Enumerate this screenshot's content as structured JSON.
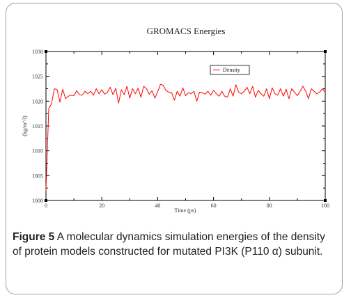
{
  "figure": {
    "caption_label": "Figure 5",
    "caption_text": " A molecular dynamics simulation energies of the density of protein models constructed for mutated PI3K (P110 α) subunit."
  },
  "colors": {
    "line": "#ff0000",
    "axis": "#000000",
    "border": "#9aa0a6"
  },
  "chart_data": {
    "type": "line",
    "title": "GROMACS Energies",
    "xlabel": "Time (ps)",
    "ylabel": "(kg/m^3)",
    "xlim": [
      0,
      100
    ],
    "ylim": [
      1000,
      1030
    ],
    "xticks": [
      "0",
      "20",
      "40",
      "60",
      "80",
      "100"
    ],
    "yticks": [
      "1000",
      "1005",
      "1010",
      "1015",
      "1020",
      "1025",
      "1030"
    ],
    "legend_position": "top-right",
    "grid": false,
    "series": [
      {
        "name": "Density",
        "x": [
          0,
          1,
          2,
          3,
          4,
          5,
          6,
          7,
          8,
          9,
          10,
          11,
          12,
          13,
          14,
          15,
          16,
          17,
          18,
          19,
          20,
          21,
          22,
          23,
          24,
          25,
          26,
          27,
          28,
          29,
          30,
          31,
          32,
          33,
          34,
          35,
          36,
          37,
          38,
          39,
          40,
          41,
          42,
          43,
          44,
          45,
          46,
          47,
          48,
          49,
          50,
          51,
          52,
          53,
          54,
          55,
          56,
          57,
          58,
          59,
          60,
          61,
          62,
          63,
          64,
          65,
          66,
          67,
          68,
          69,
          70,
          71,
          72,
          73,
          74,
          75,
          76,
          77,
          78,
          79,
          80,
          81,
          82,
          83,
          84,
          85,
          86,
          87,
          88,
          89,
          90,
          91,
          92,
          93,
          94,
          95,
          96,
          97,
          98,
          99,
          100
        ],
        "y": [
          1002,
          1018.5,
          1019.5,
          1022.5,
          1022.3,
          1019.8,
          1022.4,
          1020.5,
          1021.0,
          1021.2,
          1021.1,
          1022.1,
          1021.3,
          1021.2,
          1022.0,
          1021.5,
          1022.0,
          1021.2,
          1022.5,
          1021.5,
          1022.3,
          1021.4,
          1021.8,
          1022.8,
          1021.3,
          1022.6,
          1019.6,
          1022.3,
          1021.3,
          1023.0,
          1020.6,
          1022.5,
          1021.5,
          1022.6,
          1020.8,
          1023.0,
          1022.5,
          1021.4,
          1022.1,
          1020.6,
          1021.9,
          1023.4,
          1023.2,
          1022.1,
          1021.8,
          1021.7,
          1020.2,
          1022.0,
          1021.0,
          1022.7,
          1021.1,
          1021.7,
          1021.5,
          1022.0,
          1020.0,
          1021.8,
          1021.7,
          1021.4,
          1022.0,
          1021.2,
          1022.2,
          1021.5,
          1021.0,
          1022.0,
          1021.0,
          1020.8,
          1022.5,
          1021.0,
          1023.3,
          1021.8,
          1021.5,
          1022.0,
          1022.8,
          1021.5,
          1023.0,
          1020.8,
          1022.2,
          1021.5,
          1021.0,
          1022.5,
          1020.5,
          1022.7,
          1021.5,
          1021.2,
          1022.5,
          1021.0,
          1022.4,
          1020.5,
          1022.5,
          1021.8,
          1021.1,
          1022.0,
          1023.0,
          1022.0,
          1020.5,
          1022.5,
          1022.0,
          1021.5,
          1021.8,
          1022.5,
          1021.8
        ]
      }
    ]
  }
}
